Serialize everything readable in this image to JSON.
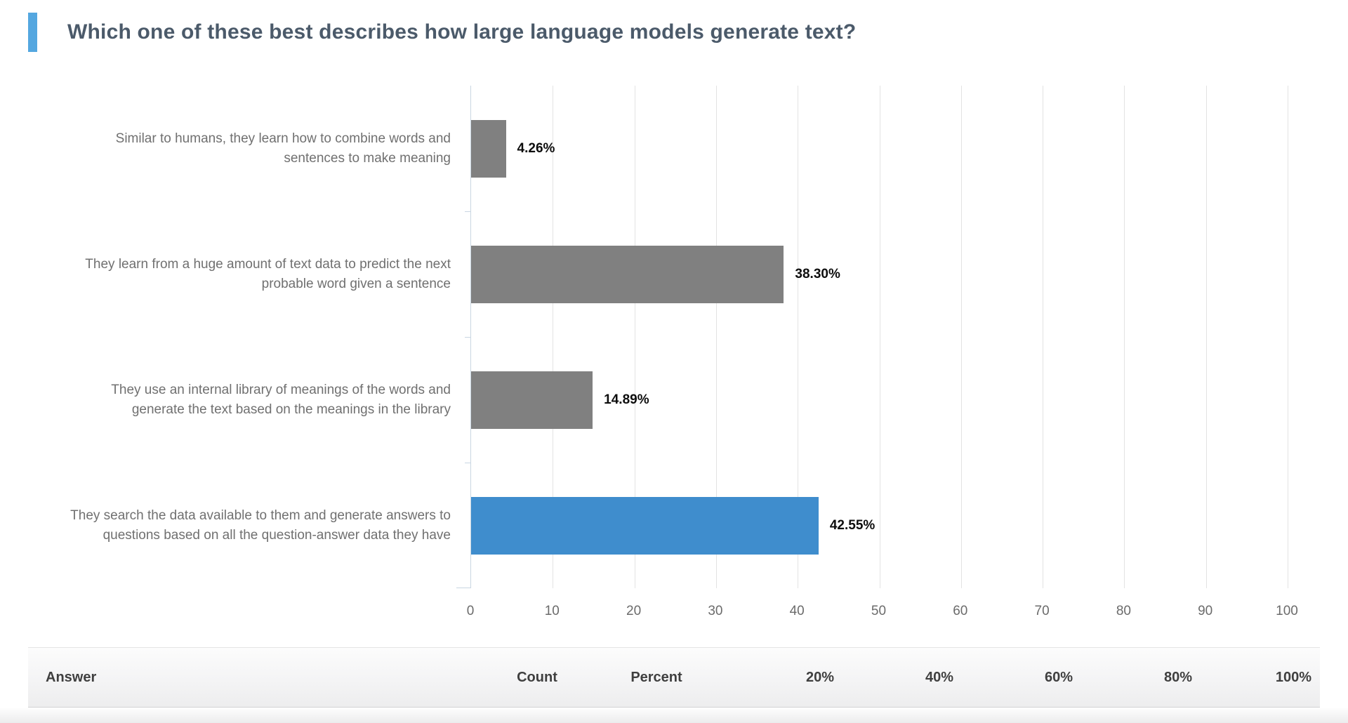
{
  "question": {
    "title": "Which one of these best describes how large language models generate text?",
    "accent_color": "#54a7e0"
  },
  "chart_data": {
    "type": "bar",
    "orientation": "horizontal",
    "title": "Which one of these best describes how large language models generate text?",
    "categories": [
      "Similar to humans, they learn how to combine words and sentences to make meaning",
      "They learn from a huge amount of text data to predict the next probable word given a sentence",
      "They use an internal library of meanings of the words and generate the text based on the meanings in the library",
      "They search the data available to them and generate answers to questions based on all the question-answer data they have"
    ],
    "values": [
      4.26,
      38.3,
      14.89,
      42.55
    ],
    "value_labels": [
      "4.26%",
      "38.30%",
      "14.89%",
      "42.55%"
    ],
    "bar_colors": [
      "#808080",
      "#808080",
      "#808080",
      "#3f8dcd"
    ],
    "xlabel": "",
    "ylabel": "",
    "xlim": [
      0,
      100
    ],
    "x_ticks": [
      0,
      10,
      20,
      30,
      40,
      50,
      60,
      70,
      80,
      90,
      100
    ],
    "grid": true,
    "legend": false
  },
  "table": {
    "columns": [
      "Answer",
      "Count",
      "Percent",
      "20%",
      "40%",
      "60%",
      "80%",
      "100%"
    ]
  },
  "colors": {
    "gridline": "#e3e3e3",
    "axis": "#c9d6e2",
    "category_label": "#707070",
    "tick_label": "#6b6b6b",
    "value_label": "#0d0d0d",
    "title_text": "#4b5a6a"
  }
}
